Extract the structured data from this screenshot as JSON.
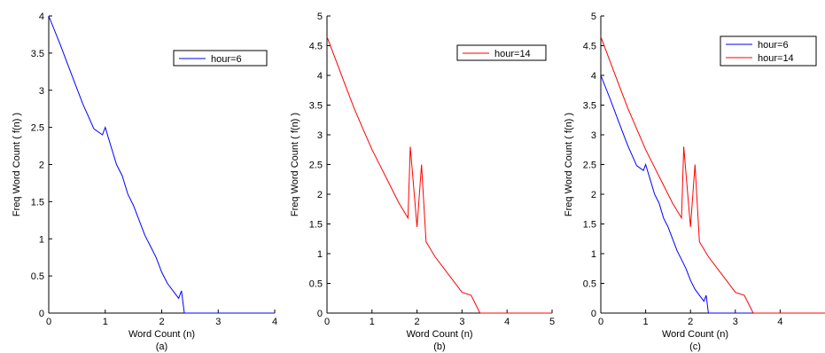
{
  "header_fragment": "",
  "chart_data": [
    {
      "type": "line",
      "panel_label": "(a)",
      "xlabel": "Word Count (n)",
      "ylabel": "Freq Word Count ( f(n) )",
      "xlim": [
        0,
        4
      ],
      "ylim": [
        0,
        4
      ],
      "xticks": [
        "0",
        "1",
        "2",
        "3",
        "4"
      ],
      "yticks": [
        "0",
        "0.5",
        "1",
        "1.5",
        "2",
        "2.5",
        "3",
        "3.5",
        "4"
      ],
      "legend_position": "top-right",
      "grid": false,
      "series": [
        {
          "name": "hour=6",
          "color": "#0000ff",
          "x": [
            0,
            0.2,
            0.4,
            0.6,
            0.8,
            0.95,
            1.0,
            1.1,
            1.2,
            1.3,
            1.4,
            1.5,
            1.6,
            1.7,
            1.8,
            1.9,
            2.0,
            2.1,
            2.2,
            2.3,
            2.35,
            2.4
          ],
          "y": [
            4.0,
            3.62,
            3.22,
            2.82,
            2.48,
            2.4,
            2.5,
            2.25,
            2.0,
            1.85,
            1.6,
            1.45,
            1.25,
            1.05,
            0.9,
            0.75,
            0.55,
            0.4,
            0.3,
            0.2,
            0.3,
            0.0
          ]
        }
      ]
    },
    {
      "type": "line",
      "panel_label": "(b)",
      "xlabel": "Word Count (n)",
      "ylabel": "Freq Word Count ( f(n) )",
      "xlim": [
        0,
        5
      ],
      "ylim": [
        0,
        5
      ],
      "xticks": [
        "0",
        "1",
        "2",
        "3",
        "4",
        "5"
      ],
      "yticks": [
        "0",
        "0.5",
        "1",
        "1.5",
        "2",
        "2.5",
        "3",
        "3.5",
        "4",
        "4.5",
        "5"
      ],
      "legend_position": "top-right",
      "grid": false,
      "series": [
        {
          "name": "hour=14",
          "color": "#ff0000",
          "x": [
            0,
            0.2,
            0.4,
            0.6,
            0.8,
            1.0,
            1.2,
            1.4,
            1.6,
            1.8,
            1.85,
            2.0,
            2.1,
            2.2,
            2.4,
            2.6,
            2.8,
            3.0,
            3.2,
            3.4
          ],
          "y": [
            4.65,
            4.25,
            3.85,
            3.45,
            3.1,
            2.75,
            2.45,
            2.15,
            1.85,
            1.6,
            2.8,
            1.45,
            2.5,
            1.2,
            0.95,
            0.75,
            0.55,
            0.35,
            0.3,
            0.0
          ]
        }
      ]
    },
    {
      "type": "line",
      "panel_label": "(c)",
      "xlabel": "Word Count (n)",
      "ylabel": "Freq Word Count ( f(n) )",
      "xlim": [
        0,
        5
      ],
      "ylim": [
        0,
        5
      ],
      "xticks": [
        "0",
        "1",
        "2",
        "3",
        "4"
      ],
      "yticks": [
        "0",
        "0.5",
        "1",
        "1.5",
        "2",
        "2.5",
        "3",
        "3.5",
        "4",
        "4.5",
        "5"
      ],
      "legend_position": "top-right",
      "grid": false,
      "series": [
        {
          "name": "hour=6",
          "color": "#0000ff",
          "x": [
            0,
            0.2,
            0.4,
            0.6,
            0.8,
            0.95,
            1.0,
            1.1,
            1.2,
            1.3,
            1.4,
            1.5,
            1.6,
            1.7,
            1.8,
            1.9,
            2.0,
            2.1,
            2.2,
            2.3,
            2.35,
            2.4
          ],
          "y": [
            4.0,
            3.62,
            3.22,
            2.82,
            2.48,
            2.4,
            2.5,
            2.25,
            2.0,
            1.85,
            1.6,
            1.45,
            1.25,
            1.05,
            0.9,
            0.75,
            0.55,
            0.4,
            0.3,
            0.2,
            0.3,
            0.0
          ]
        },
        {
          "name": "hour=14",
          "color": "#ff0000",
          "x": [
            0,
            0.2,
            0.4,
            0.6,
            0.8,
            1.0,
            1.2,
            1.4,
            1.6,
            1.8,
            1.85,
            2.0,
            2.1,
            2.2,
            2.4,
            2.6,
            2.8,
            3.0,
            3.2,
            3.4
          ],
          "y": [
            4.65,
            4.25,
            3.85,
            3.45,
            3.1,
            2.75,
            2.45,
            2.15,
            1.85,
            1.6,
            2.8,
            1.45,
            2.5,
            1.2,
            0.95,
            0.75,
            0.55,
            0.35,
            0.3,
            0.0
          ]
        }
      ]
    }
  ]
}
